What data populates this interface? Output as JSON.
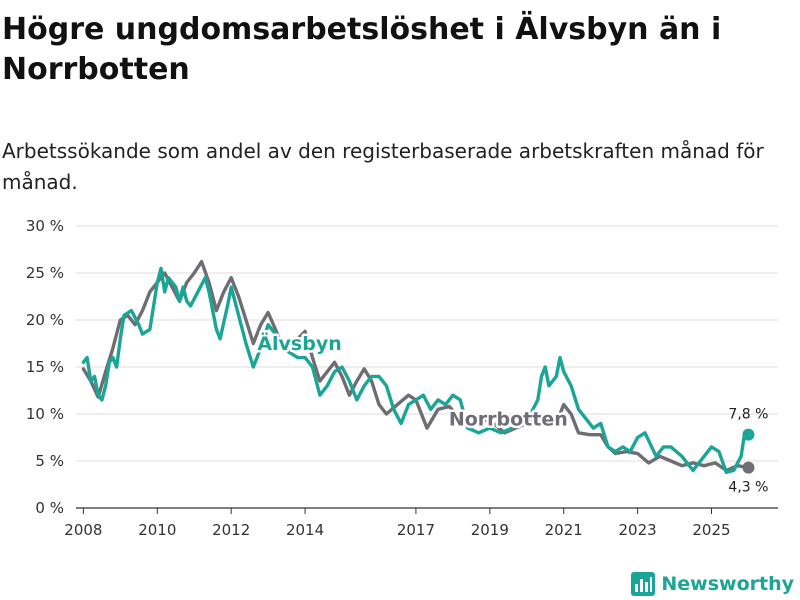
{
  "header": {
    "title": "Högre ungdomsarbetslöshet i Älvsbyn än i Norrbotten",
    "subtitle": "Arbetssökande som andel av den registerbaserade arbetskraften månad för månad."
  },
  "colors": {
    "alvsbyn": "#1aa596",
    "norrbotten": "#6d6d72",
    "grid": "#dcdcdc",
    "axis": "#333333"
  },
  "brand": {
    "name": "Newsworthy",
    "icon": "bar-chart-logo-icon"
  },
  "chart_data": {
    "type": "line",
    "title": "Högre ungdomsarbetslöshet i Älvsbyn än i Norrbotten",
    "xlabel": "",
    "ylabel": "",
    "xlim": [
      2007.8,
      2026.8
    ],
    "ylim": [
      0,
      30
    ],
    "y_ticks": [
      0,
      5,
      10,
      15,
      20,
      25,
      30
    ],
    "y_tick_labels": [
      "0 %",
      "5 %",
      "10 %",
      "15 %",
      "20 %",
      "25 %",
      "30 %"
    ],
    "x_ticks": [
      2008,
      2010,
      2012,
      2014,
      2017,
      2019,
      2021,
      2023,
      2025
    ],
    "x_tick_labels": [
      "2008",
      "2010",
      "2012",
      "2014",
      "2017",
      "2019",
      "2021",
      "2023",
      "2025"
    ],
    "grid": true,
    "series": [
      {
        "name": "Norrbotten",
        "label": "Norrbotten",
        "end_label": "4,3 %",
        "color": "#6d6d72",
        "points": [
          [
            2008.0,
            14.8
          ],
          [
            2008.2,
            13.5
          ],
          [
            2008.4,
            11.8
          ],
          [
            2008.6,
            14.5
          ],
          [
            2008.8,
            17.0
          ],
          [
            2009.0,
            20.0
          ],
          [
            2009.2,
            20.5
          ],
          [
            2009.4,
            19.5
          ],
          [
            2009.6,
            21.0
          ],
          [
            2009.8,
            23.0
          ],
          [
            2010.0,
            24.0
          ],
          [
            2010.2,
            25.0
          ],
          [
            2010.4,
            23.5
          ],
          [
            2010.6,
            22.0
          ],
          [
            2010.8,
            24.0
          ],
          [
            2011.0,
            25.0
          ],
          [
            2011.2,
            26.2
          ],
          [
            2011.4,
            24.0
          ],
          [
            2011.6,
            21.0
          ],
          [
            2011.8,
            23.0
          ],
          [
            2012.0,
            24.5
          ],
          [
            2012.2,
            22.5
          ],
          [
            2012.4,
            20.0
          ],
          [
            2012.6,
            17.5
          ],
          [
            2012.8,
            19.5
          ],
          [
            2013.0,
            20.8
          ],
          [
            2013.2,
            19.0
          ],
          [
            2013.4,
            17.0
          ],
          [
            2013.6,
            16.5
          ],
          [
            2013.8,
            18.0
          ],
          [
            2014.0,
            18.8
          ],
          [
            2014.2,
            16.0
          ],
          [
            2014.4,
            13.5
          ],
          [
            2014.6,
            14.5
          ],
          [
            2014.8,
            15.5
          ],
          [
            2015.0,
            14.0
          ],
          [
            2015.2,
            12.0
          ],
          [
            2015.4,
            13.5
          ],
          [
            2015.6,
            14.8
          ],
          [
            2015.8,
            13.5
          ],
          [
            2016.0,
            11.0
          ],
          [
            2016.2,
            10.0
          ],
          [
            2016.5,
            11.0
          ],
          [
            2016.8,
            12.0
          ],
          [
            2017.0,
            11.5
          ],
          [
            2017.3,
            8.5
          ],
          [
            2017.6,
            10.5
          ],
          [
            2017.9,
            10.8
          ],
          [
            2018.2,
            9.5
          ],
          [
            2018.5,
            8.5
          ],
          [
            2018.8,
            9.5
          ],
          [
            2019.1,
            9.0
          ],
          [
            2019.4,
            8.0
          ],
          [
            2019.7,
            8.5
          ],
          [
            2020.0,
            9.0
          ],
          [
            2020.3,
            10.0
          ],
          [
            2020.6,
            9.5
          ],
          [
            2020.9,
            10.0
          ],
          [
            2021.0,
            11.0
          ],
          [
            2021.2,
            10.0
          ],
          [
            2021.4,
            8.0
          ],
          [
            2021.7,
            7.8
          ],
          [
            2022.0,
            7.8
          ],
          [
            2022.2,
            6.5
          ],
          [
            2022.4,
            5.8
          ],
          [
            2022.7,
            6.0
          ],
          [
            2023.0,
            5.8
          ],
          [
            2023.3,
            4.8
          ],
          [
            2023.6,
            5.5
          ],
          [
            2023.9,
            5.0
          ],
          [
            2024.2,
            4.5
          ],
          [
            2024.5,
            4.8
          ],
          [
            2024.8,
            4.5
          ],
          [
            2025.1,
            4.8
          ],
          [
            2025.4,
            4.0
          ],
          [
            2025.7,
            4.5
          ],
          [
            2026.0,
            4.3
          ]
        ]
      },
      {
        "name": "Älvsbyn",
        "label": "Älvsbyn",
        "end_label": "7,8 %",
        "color": "#1aa596",
        "points": [
          [
            2008.0,
            15.5
          ],
          [
            2008.1,
            16.0
          ],
          [
            2008.2,
            13.5
          ],
          [
            2008.3,
            14.0
          ],
          [
            2008.4,
            12.0
          ],
          [
            2008.5,
            11.5
          ],
          [
            2008.6,
            13.0
          ],
          [
            2008.7,
            15.5
          ],
          [
            2008.8,
            16.0
          ],
          [
            2008.9,
            15.0
          ],
          [
            2009.0,
            18.0
          ],
          [
            2009.1,
            20.5
          ],
          [
            2009.3,
            21.0
          ],
          [
            2009.5,
            19.5
          ],
          [
            2009.6,
            18.5
          ],
          [
            2009.8,
            19.0
          ],
          [
            2010.0,
            24.0
          ],
          [
            2010.1,
            25.5
          ],
          [
            2010.2,
            23.0
          ],
          [
            2010.3,
            24.5
          ],
          [
            2010.5,
            23.5
          ],
          [
            2010.6,
            22.0
          ],
          [
            2010.7,
            23.5
          ],
          [
            2010.8,
            22.0
          ],
          [
            2010.9,
            21.5
          ],
          [
            2011.1,
            23.0
          ],
          [
            2011.3,
            24.5
          ],
          [
            2011.4,
            23.0
          ],
          [
            2011.5,
            21.0
          ],
          [
            2011.6,
            19.0
          ],
          [
            2011.7,
            18.0
          ],
          [
            2011.9,
            21.5
          ],
          [
            2012.0,
            23.5
          ],
          [
            2012.2,
            20.5
          ],
          [
            2012.4,
            17.5
          ],
          [
            2012.6,
            15.0
          ],
          [
            2012.8,
            17.0
          ],
          [
            2013.0,
            19.5
          ],
          [
            2013.2,
            18.5
          ],
          [
            2013.4,
            17.0
          ],
          [
            2013.6,
            16.5
          ],
          [
            2013.8,
            16.0
          ],
          [
            2014.0,
            16.0
          ],
          [
            2014.2,
            15.0
          ],
          [
            2014.4,
            12.0
          ],
          [
            2014.6,
            13.0
          ],
          [
            2014.8,
            14.5
          ],
          [
            2015.0,
            15.0
          ],
          [
            2015.2,
            13.5
          ],
          [
            2015.4,
            11.5
          ],
          [
            2015.6,
            13.0
          ],
          [
            2015.8,
            14.0
          ],
          [
            2016.0,
            14.0
          ],
          [
            2016.2,
            13.0
          ],
          [
            2016.4,
            10.5
          ],
          [
            2016.6,
            9.0
          ],
          [
            2016.8,
            11.0
          ],
          [
            2017.0,
            11.5
          ],
          [
            2017.2,
            12.0
          ],
          [
            2017.4,
            10.5
          ],
          [
            2017.6,
            11.5
          ],
          [
            2017.8,
            11.0
          ],
          [
            2018.0,
            12.0
          ],
          [
            2018.2,
            11.5
          ],
          [
            2018.4,
            8.5
          ],
          [
            2018.7,
            8.0
          ],
          [
            2019.0,
            8.5
          ],
          [
            2019.3,
            8.0
          ],
          [
            2019.6,
            8.5
          ],
          [
            2019.9,
            9.5
          ],
          [
            2020.1,
            10.0
          ],
          [
            2020.3,
            11.5
          ],
          [
            2020.4,
            14.0
          ],
          [
            2020.5,
            15.0
          ],
          [
            2020.6,
            13.0
          ],
          [
            2020.8,
            14.0
          ],
          [
            2020.9,
            16.0
          ],
          [
            2021.0,
            14.5
          ],
          [
            2021.2,
            13.0
          ],
          [
            2021.4,
            10.5
          ],
          [
            2021.6,
            9.5
          ],
          [
            2021.8,
            8.5
          ],
          [
            2022.0,
            9.0
          ],
          [
            2022.2,
            6.5
          ],
          [
            2022.4,
            6.0
          ],
          [
            2022.6,
            6.5
          ],
          [
            2022.8,
            6.0
          ],
          [
            2023.0,
            7.5
          ],
          [
            2023.2,
            8.0
          ],
          [
            2023.5,
            5.5
          ],
          [
            2023.7,
            6.5
          ],
          [
            2023.9,
            6.5
          ],
          [
            2024.2,
            5.5
          ],
          [
            2024.5,
            4.0
          ],
          [
            2024.8,
            5.5
          ],
          [
            2025.0,
            6.5
          ],
          [
            2025.2,
            6.0
          ],
          [
            2025.4,
            3.8
          ],
          [
            2025.6,
            4.0
          ],
          [
            2025.8,
            5.5
          ],
          [
            2025.9,
            8.0
          ],
          [
            2026.0,
            7.8
          ]
        ]
      }
    ]
  }
}
